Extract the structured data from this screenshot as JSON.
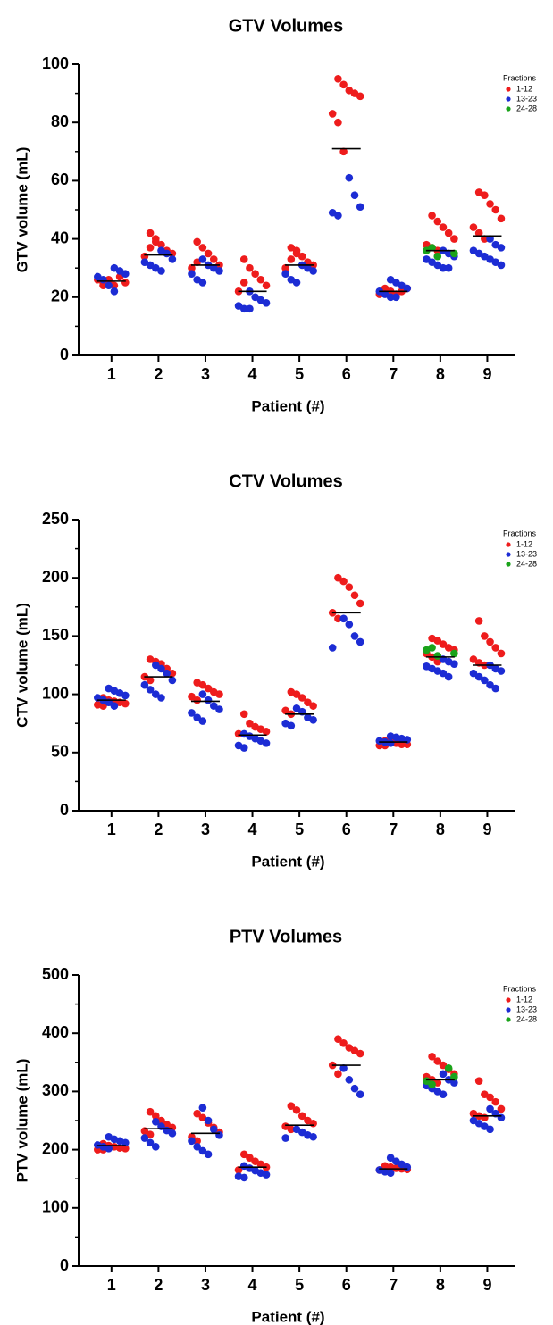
{
  "chart_data": [
    {
      "type": "strip",
      "title": "GTV Volumes",
      "x_label": "Patient (#)",
      "y_label": "GTV volume (mL)",
      "legend_title": "Fractions",
      "xlim": [
        0.3,
        9.6
      ],
      "xticks": [
        1,
        2,
        3,
        4,
        5,
        6,
        7,
        8,
        9
      ],
      "ylim": [
        0,
        100
      ],
      "yticks": [
        0,
        20,
        40,
        60,
        80,
        100
      ],
      "series": [
        {
          "name": "1-12",
          "color": "#ee1c1c",
          "x": [
            1,
            1,
            1,
            1,
            1,
            1,
            1,
            1,
            2,
            2,
            2,
            2,
            2,
            2,
            2,
            2,
            3,
            3,
            3,
            3,
            3,
            3,
            3,
            4,
            4,
            4,
            4,
            4,
            4,
            4,
            5,
            5,
            5,
            5,
            5,
            5,
            5,
            5,
            6,
            6,
            6,
            6,
            6,
            6,
            6,
            6,
            7,
            7,
            7,
            7,
            7,
            7,
            7,
            8,
            8,
            8,
            8,
            8,
            8,
            8,
            8,
            9,
            9,
            9,
            9,
            9,
            9,
            9,
            9
          ],
          "values": [
            25,
            26,
            24,
            27,
            25,
            26,
            24,
            25,
            42,
            40,
            38,
            36,
            35,
            34,
            37,
            39,
            39,
            37,
            35,
            33,
            31,
            30,
            32,
            33,
            30,
            28,
            26,
            24,
            22,
            25,
            37,
            36,
            34,
            32,
            31,
            30,
            33,
            35,
            95,
            93,
            91,
            90,
            89,
            83,
            80,
            70,
            23,
            22,
            21,
            22,
            23,
            21,
            22,
            48,
            46,
            44,
            42,
            40,
            38,
            37,
            36,
            56,
            55,
            52,
            50,
            47,
            44,
            42,
            40
          ]
        },
        {
          "name": "13-23",
          "color": "#1c2cd4",
          "x": [
            1,
            1,
            1,
            1,
            1,
            1,
            1,
            2,
            2,
            2,
            2,
            2,
            2,
            2,
            3,
            3,
            3,
            3,
            3,
            3,
            3,
            4,
            4,
            4,
            4,
            4,
            4,
            4,
            5,
            5,
            5,
            5,
            5,
            5,
            6,
            6,
            6,
            6,
            6,
            7,
            7,
            7,
            7,
            7,
            7,
            7,
            7,
            8,
            8,
            8,
            8,
            8,
            8,
            8,
            8,
            9,
            9,
            9,
            9,
            9,
            9,
            9,
            9,
            9
          ],
          "values": [
            30,
            29,
            28,
            27,
            26,
            24,
            22,
            36,
            35,
            33,
            32,
            31,
            30,
            29,
            33,
            31,
            30,
            29,
            28,
            26,
            25,
            22,
            20,
            19,
            18,
            17,
            16,
            16,
            31,
            30,
            29,
            28,
            26,
            25,
            61,
            55,
            51,
            49,
            48,
            26,
            25,
            24,
            23,
            22,
            21,
            20,
            20,
            36,
            35,
            34,
            33,
            32,
            31,
            30,
            30,
            40,
            38,
            37,
            36,
            35,
            34,
            33,
            32,
            31
          ]
        },
        {
          "name": "24-28",
          "color": "#1aa31a",
          "x": [
            8,
            8,
            8,
            8
          ],
          "values": [
            35,
            36,
            37,
            34
          ]
        }
      ],
      "medians": {
        "x": [
          1,
          2,
          3,
          4,
          5,
          6,
          7,
          8,
          9
        ],
        "values": [
          25.5,
          34.5,
          31,
          22,
          31,
          71,
          22,
          36,
          41
        ]
      }
    },
    {
      "type": "strip",
      "title": "CTV Volumes",
      "x_label": "Patient (#)",
      "y_label": "CTV volume (mL)",
      "legend_title": "Fractions",
      "xlim": [
        0.3,
        9.6
      ],
      "xticks": [
        1,
        2,
        3,
        4,
        5,
        6,
        7,
        8,
        9
      ],
      "ylim": [
        0,
        250
      ],
      "yticks": [
        0,
        50,
        100,
        150,
        200,
        250
      ],
      "series": [
        {
          "name": "1-12",
          "color": "#ee1c1c",
          "x": [
            1,
            1,
            1,
            1,
            1,
            1,
            1,
            2,
            2,
            2,
            2,
            2,
            2,
            2,
            3,
            3,
            3,
            3,
            3,
            3,
            3,
            4,
            4,
            4,
            4,
            4,
            4,
            5,
            5,
            5,
            5,
            5,
            5,
            5,
            6,
            6,
            6,
            6,
            6,
            6,
            6,
            7,
            7,
            7,
            7,
            7,
            7,
            7,
            8,
            8,
            8,
            8,
            8,
            8,
            8,
            8,
            9,
            9,
            9,
            9,
            9,
            9,
            9,
            9
          ],
          "values": [
            97,
            95,
            94,
            93,
            92,
            91,
            90,
            130,
            128,
            126,
            122,
            118,
            115,
            112,
            110,
            108,
            105,
            102,
            100,
            98,
            95,
            83,
            75,
            72,
            70,
            68,
            66,
            102,
            100,
            97,
            93,
            90,
            86,
            83,
            200,
            197,
            192,
            185,
            178,
            170,
            165,
            60,
            59,
            58,
            57,
            57,
            56,
            56,
            148,
            146,
            143,
            140,
            138,
            135,
            132,
            128,
            163,
            150,
            145,
            140,
            135,
            130,
            127,
            125
          ]
        },
        {
          "name": "13-23",
          "color": "#1c2cd4",
          "x": [
            1,
            1,
            1,
            1,
            1,
            1,
            1,
            1,
            2,
            2,
            2,
            2,
            2,
            2,
            2,
            2,
            3,
            3,
            3,
            3,
            3,
            3,
            3,
            4,
            4,
            4,
            4,
            4,
            4,
            4,
            5,
            5,
            5,
            5,
            5,
            5,
            6,
            6,
            6,
            6,
            6,
            7,
            7,
            7,
            7,
            7,
            7,
            7,
            8,
            8,
            8,
            8,
            8,
            8,
            8,
            8,
            9,
            9,
            9,
            9,
            9,
            9,
            9,
            9
          ],
          "values": [
            105,
            103,
            101,
            99,
            97,
            95,
            93,
            90,
            125,
            122,
            118,
            112,
            108,
            104,
            100,
            97,
            100,
            95,
            90,
            87,
            84,
            80,
            77,
            66,
            64,
            62,
            60,
            58,
            56,
            54,
            88,
            85,
            80,
            78,
            75,
            73,
            165,
            160,
            150,
            145,
            140,
            64,
            63,
            62,
            61,
            60,
            59,
            58,
            130,
            128,
            126,
            124,
            122,
            120,
            118,
            115,
            125,
            122,
            120,
            118,
            115,
            112,
            108,
            105
          ]
        },
        {
          "name": "24-28",
          "color": "#1aa31a",
          "x": [
            8,
            8,
            8,
            8
          ],
          "values": [
            135,
            138,
            140,
            133
          ]
        }
      ],
      "medians": {
        "x": [
          1,
          2,
          3,
          4,
          5,
          6,
          7,
          8,
          9
        ],
        "values": [
          95,
          115,
          94,
          65,
          83,
          170,
          59,
          132,
          125
        ]
      }
    },
    {
      "type": "strip",
      "title": "PTV Volumes",
      "x_label": "Patient (#)",
      "y_label": "PTV volume (mL)",
      "legend_title": "Fractions",
      "xlim": [
        0.3,
        9.6
      ],
      "xticks": [
        1,
        2,
        3,
        4,
        5,
        6,
        7,
        8,
        9
      ],
      "ylim": [
        0,
        500
      ],
      "yticks": [
        0,
        100,
        200,
        300,
        400,
        500
      ],
      "series": [
        {
          "name": "1-12",
          "color": "#ee1c1c",
          "x": [
            1,
            1,
            1,
            1,
            1,
            1,
            1,
            2,
            2,
            2,
            2,
            2,
            2,
            2,
            3,
            3,
            3,
            3,
            3,
            3,
            3,
            4,
            4,
            4,
            4,
            4,
            4,
            5,
            5,
            5,
            5,
            5,
            5,
            5,
            6,
            6,
            6,
            6,
            6,
            6,
            6,
            7,
            7,
            7,
            7,
            7,
            7,
            7,
            8,
            8,
            8,
            8,
            8,
            8,
            8,
            8,
            9,
            9,
            9,
            9,
            9,
            9,
            9,
            9
          ],
          "values": [
            210,
            207,
            205,
            203,
            202,
            200,
            200,
            265,
            258,
            250,
            243,
            238,
            232,
            226,
            262,
            255,
            246,
            238,
            230,
            222,
            215,
            192,
            186,
            180,
            175,
            170,
            165,
            275,
            268,
            258,
            250,
            245,
            240,
            235,
            390,
            383,
            375,
            370,
            365,
            345,
            330,
            172,
            170,
            168,
            167,
            166,
            165,
            163,
            360,
            352,
            345,
            338,
            330,
            325,
            320,
            315,
            318,
            295,
            290,
            282,
            270,
            262,
            258,
            255
          ]
        },
        {
          "name": "13-23",
          "color": "#1c2cd4",
          "x": [
            1,
            1,
            1,
            1,
            1,
            1,
            1,
            2,
            2,
            2,
            2,
            2,
            2,
            2,
            3,
            3,
            3,
            3,
            3,
            3,
            3,
            3,
            4,
            4,
            4,
            4,
            4,
            4,
            4,
            5,
            5,
            5,
            5,
            5,
            6,
            6,
            6,
            6,
            7,
            7,
            7,
            7,
            7,
            7,
            7,
            8,
            8,
            8,
            8,
            8,
            8,
            8,
            9,
            9,
            9,
            9,
            9,
            9,
            9
          ],
          "values": [
            222,
            218,
            215,
            212,
            208,
            205,
            202,
            248,
            240,
            233,
            228,
            220,
            212,
            205,
            272,
            250,
            235,
            225,
            215,
            205,
            198,
            192,
            172,
            168,
            164,
            160,
            157,
            154,
            152,
            235,
            230,
            225,
            222,
            220,
            340,
            320,
            305,
            295,
            186,
            180,
            175,
            170,
            165,
            162,
            160,
            330,
            320,
            315,
            310,
            305,
            300,
            295,
            270,
            262,
            255,
            250,
            245,
            240,
            235
          ]
        },
        {
          "name": "24-28",
          "color": "#1aa31a",
          "x": [
            8,
            8,
            8,
            8
          ],
          "values": [
            340,
            325,
            318,
            312
          ]
        }
      ],
      "medians": {
        "x": [
          1,
          2,
          3,
          4,
          5,
          6,
          7,
          8,
          9
        ],
        "values": [
          207,
          236,
          228,
          170,
          242,
          345,
          167,
          320,
          258
        ]
      }
    }
  ]
}
